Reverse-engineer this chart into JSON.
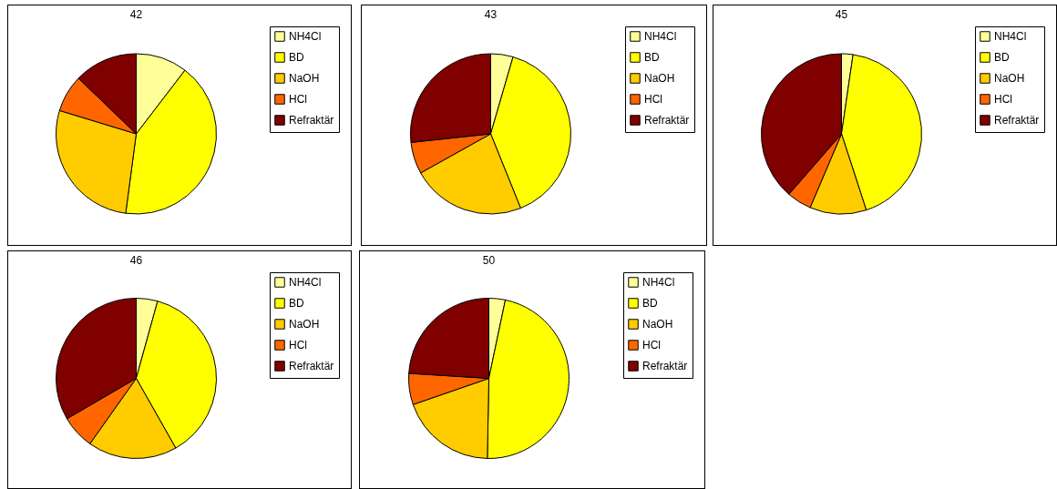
{
  "chart_data": [
    {
      "type": "pie",
      "title": "42",
      "categories": [
        "NH4Cl",
        "BD",
        "NaOH",
        "HCl",
        "Refraktär"
      ],
      "values": [
        10.4,
        41.7,
        27.6,
        7.5,
        12.8
      ],
      "colors": [
        "#ffff99",
        "#ffff00",
        "#ffcc00",
        "#ff6600",
        "#800000"
      ],
      "legend": "right"
    },
    {
      "type": "pie",
      "title": "43",
      "categories": [
        "NH4Cl",
        "BD",
        "NaOH",
        "HCl",
        "Refraktär"
      ],
      "values": [
        4.5,
        39.4,
        23,
        6.4,
        26.7
      ],
      "colors": [
        "#ffff99",
        "#ffff00",
        "#ffcc00",
        "#ff6600",
        "#800000"
      ],
      "legend": "right"
    },
    {
      "type": "pie",
      "title": "45",
      "categories": [
        "NH4Cl",
        "BD",
        "NaOH",
        "HCl",
        "Refraktär"
      ],
      "values": [
        2.3,
        42.7,
        11.4,
        5,
        38.6
      ],
      "colors": [
        "#ffff99",
        "#ffff00",
        "#ffcc00",
        "#ff6600",
        "#800000"
      ],
      "legend": "right"
    },
    {
      "type": "pie",
      "title": "46",
      "categories": [
        "NH4Cl",
        "BD",
        "NaOH",
        "HCl",
        "Refraktär"
      ],
      "values": [
        4.3,
        37.5,
        18,
        6.8,
        33.4
      ],
      "colors": [
        "#ffff99",
        "#ffff00",
        "#ffcc00",
        "#ff6600",
        "#800000"
      ],
      "legend": "right"
    },
    {
      "type": "pie",
      "title": "50",
      "categories": [
        "NH4Cl",
        "BD",
        "NaOH",
        "HCl",
        "Refraktär"
      ],
      "values": [
        3.3,
        47,
        19.4,
        6.3,
        24
      ],
      "colors": [
        "#ffff99",
        "#ffff00",
        "#ffcc00",
        "#ff6600",
        "#800000"
      ],
      "legend": "right"
    }
  ]
}
